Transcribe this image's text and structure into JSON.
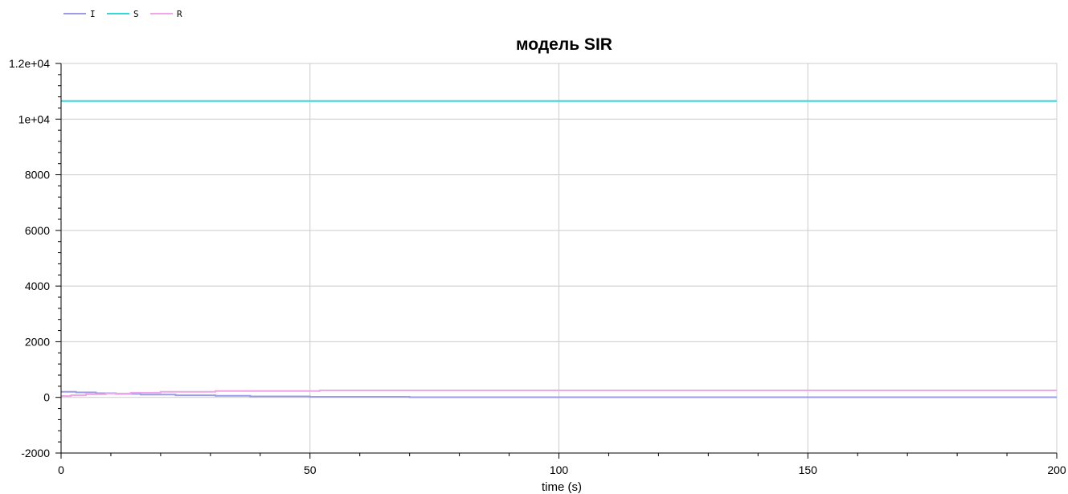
{
  "chart_data": {
    "type": "line",
    "title": "модель SIR",
    "xlabel": "time (s)",
    "ylabel": "",
    "xlim": [
      0,
      200
    ],
    "ylim": [
      -2000,
      12000
    ],
    "x_ticks": [
      0,
      50,
      100,
      150,
      200
    ],
    "y_ticks": [
      -2000,
      0,
      2000,
      4000,
      6000,
      8000,
      10000,
      12000
    ],
    "y_tick_labels": [
      "-2000",
      "0",
      "2000",
      "4000",
      "6000",
      "8000",
      "1e+04",
      "1.2e+04"
    ],
    "x_tick_labels": [
      "0",
      "50",
      "100",
      "150",
      "200"
    ],
    "grid": true,
    "legend_position": "top-left",
    "series": [
      {
        "name": "I",
        "color": "#9b9be6",
        "x": [
          0,
          3,
          3,
          7,
          7,
          11,
          11,
          16,
          16,
          23,
          23,
          31,
          31,
          38,
          38,
          50,
          50,
          70,
          70,
          200
        ],
        "y": [
          200,
          200,
          180,
          180,
          150,
          150,
          125,
          125,
          100,
          100,
          75,
          75,
          55,
          55,
          35,
          35,
          20,
          20,
          5,
          5
        ]
      },
      {
        "name": "S",
        "color": "#33d9d9",
        "x": [
          0,
          200
        ],
        "y": [
          10650,
          10650
        ]
      },
      {
        "name": "R",
        "color": "#f0a6e8",
        "x": [
          0,
          2,
          2,
          5,
          5,
          9,
          9,
          14,
          14,
          20,
          20,
          31,
          31,
          52,
          52,
          200
        ],
        "y": [
          50,
          50,
          80,
          80,
          110,
          110,
          140,
          140,
          170,
          170,
          200,
          200,
          230,
          230,
          250,
          250
        ]
      }
    ]
  }
}
